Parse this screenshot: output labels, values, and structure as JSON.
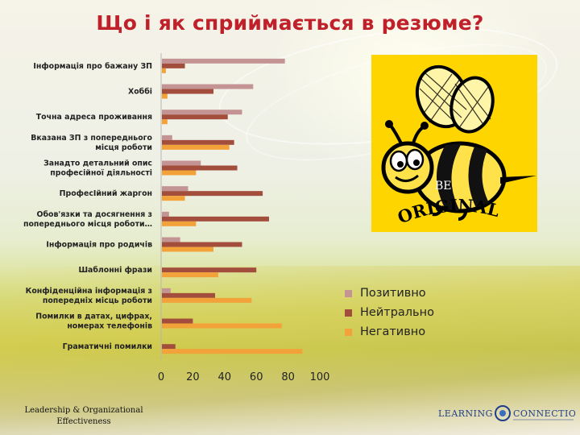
{
  "title": "Що і як сприймається в резюме?",
  "footer": {
    "org_line1": "Leadership & Organizational",
    "org_line2": "Effectiveness",
    "logo_left": "LEARNING",
    "logo_right": "CONNECTION"
  },
  "bee_image": {
    "text_be": "BE",
    "text_original": "ORIGINAL"
  },
  "colors": {
    "positive": "#c49494",
    "neutral": "#a34e3c",
    "negative": "#f3a23a",
    "title": "#c0202a",
    "panel": "#ffd500"
  },
  "chart_data": {
    "type": "bar",
    "orientation": "horizontal",
    "categories": [
      [
        "Інформація про бажану ЗП"
      ],
      [
        "Хоббі"
      ],
      [
        "Точна адреса проживання"
      ],
      [
        "Вказана ЗП з попереднього",
        "місця роботи"
      ],
      [
        "Занадто детальний опис",
        "професійної діяльності"
      ],
      [
        "ПрофесІйний жаргон"
      ],
      [
        "Обов'язки та досягнення з",
        "попереднього місця роботи…"
      ],
      [
        "Інформація про родичів"
      ],
      [
        "Шаблонні фрази"
      ],
      [
        "Конфіденційна інформація з",
        "попередніх місць роботи"
      ],
      [
        "Помилки в датах, цифрах,",
        "номерах телефонів"
      ],
      [
        "Граматичні помилки"
      ]
    ],
    "series": [
      {
        "name": "Позитивно",
        "values": [
          78,
          58,
          51,
          7,
          25,
          17,
          5,
          12,
          0,
          6,
          0,
          0
        ]
      },
      {
        "name": "Нейтрально",
        "values": [
          15,
          33,
          42,
          46,
          48,
          64,
          68,
          51,
          60,
          34,
          20,
          9
        ]
      },
      {
        "name": "Негативно",
        "values": [
          3,
          4,
          4,
          43,
          22,
          15,
          22,
          33,
          36,
          57,
          76,
          89
        ]
      }
    ],
    "xlim": [
      0,
      100
    ],
    "xticks": [
      0,
      20,
      40,
      60,
      80,
      100
    ],
    "legend_position": "bottom-right"
  }
}
